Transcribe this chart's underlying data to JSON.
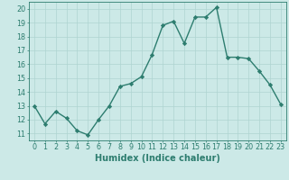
{
  "x": [
    0,
    1,
    2,
    3,
    4,
    5,
    6,
    7,
    8,
    9,
    10,
    11,
    12,
    13,
    14,
    15,
    16,
    17,
    18,
    19,
    20,
    21,
    22,
    23
  ],
  "y": [
    13,
    11.7,
    12.6,
    12.1,
    11.2,
    10.9,
    12.0,
    13.0,
    14.4,
    14.6,
    15.1,
    16.7,
    18.8,
    19.1,
    17.5,
    19.4,
    19.4,
    20.1,
    16.5,
    16.5,
    16.4,
    15.5,
    14.5,
    13.1
  ],
  "line_color": "#2d7d6f",
  "marker": "D",
  "marker_size": 2.2,
  "linewidth": 1.0,
  "bg_color": "#cce9e7",
  "grid_color": "#aed4d1",
  "xlabel": "Humidex (Indice chaleur)",
  "ylabel": "",
  "title": "",
  "xlim": [
    -0.5,
    23.5
  ],
  "ylim": [
    10.5,
    20.5
  ],
  "yticks": [
    11,
    12,
    13,
    14,
    15,
    16,
    17,
    18,
    19,
    20
  ],
  "xticks": [
    0,
    1,
    2,
    3,
    4,
    5,
    6,
    7,
    8,
    9,
    10,
    11,
    12,
    13,
    14,
    15,
    16,
    17,
    18,
    19,
    20,
    21,
    22,
    23
  ],
  "tick_color": "#2d7d6f",
  "label_fontsize": 7.0,
  "tick_fontsize": 5.8
}
